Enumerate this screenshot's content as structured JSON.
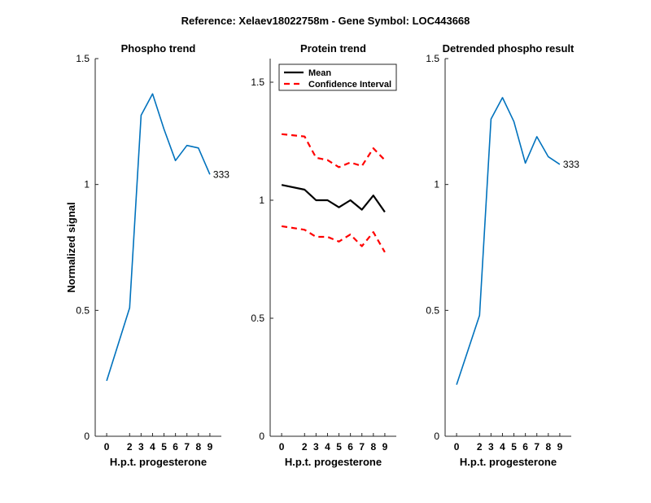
{
  "figure_title": "Reference:  Xelaev18022758m - Gene Symbol:  LOC443668",
  "colors": {
    "phospho_line": "#0072BD",
    "mean_line": "#000000",
    "ci_line": "#FF0000",
    "axes": "#262626"
  },
  "chart_data": [
    {
      "type": "line",
      "title": "Phospho trend",
      "xlabel": "H.p.t. progesterone",
      "ylabel": "Normalized signal",
      "xticks": [
        0,
        2,
        3,
        4,
        5,
        6,
        7,
        8,
        9
      ],
      "yticks": [
        0,
        0.5,
        1,
        1.5
      ],
      "ytick_labels": [
        "0",
        "0.5",
        "1",
        "1.5"
      ],
      "ylim": [
        0,
        1.5
      ],
      "grid": false,
      "series": [
        {
          "values": [
            0.22,
            0.51,
            1.275,
            1.36,
            1.22,
            1.095,
            1.155,
            1.145,
            1.04
          ]
        }
      ],
      "end_label": "333"
    },
    {
      "type": "line",
      "title": "Protein trend",
      "xlabel": "H.p.t. progesterone",
      "ylabel": "",
      "xticks": [
        0,
        2,
        3,
        4,
        5,
        6,
        7,
        8,
        9
      ],
      "yticks": [
        0,
        0.5,
        1,
        1.5
      ],
      "ytick_labels": [
        "0",
        "0.5",
        "1",
        "1.5"
      ],
      "ylim": [
        0,
        1.6
      ],
      "grid": false,
      "legend_position": "top-left",
      "series": [
        {
          "name": "Mean",
          "style": "solid",
          "values": [
            1.065,
            1.045,
            1.0,
            1.0,
            0.97,
            1.0,
            0.96,
            1.02,
            0.95
          ]
        },
        {
          "name": "Confidence Interval",
          "style": "dashed",
          "values": [
            1.28,
            1.27,
            1.18,
            1.17,
            1.14,
            1.16,
            1.145,
            1.22,
            1.17
          ]
        },
        {
          "style": "dashed",
          "values": [
            0.89,
            0.875,
            0.845,
            0.845,
            0.825,
            0.855,
            0.805,
            0.865,
            0.78
          ]
        }
      ]
    },
    {
      "type": "line",
      "title": "Detrended phospho result",
      "xlabel": "H.p.t. progesterone",
      "ylabel": "",
      "xticks": [
        0,
        2,
        3,
        4,
        5,
        6,
        7,
        8,
        9
      ],
      "yticks": [
        0,
        0.5,
        1,
        1.5
      ],
      "ytick_labels": [
        "0",
        "0.5",
        "1",
        "1.5"
      ],
      "ylim": [
        0,
        1.5
      ],
      "grid": false,
      "series": [
        {
          "values": [
            0.205,
            0.48,
            1.26,
            1.345,
            1.25,
            1.085,
            1.19,
            1.11,
            1.08
          ]
        }
      ],
      "end_label": "333"
    }
  ]
}
